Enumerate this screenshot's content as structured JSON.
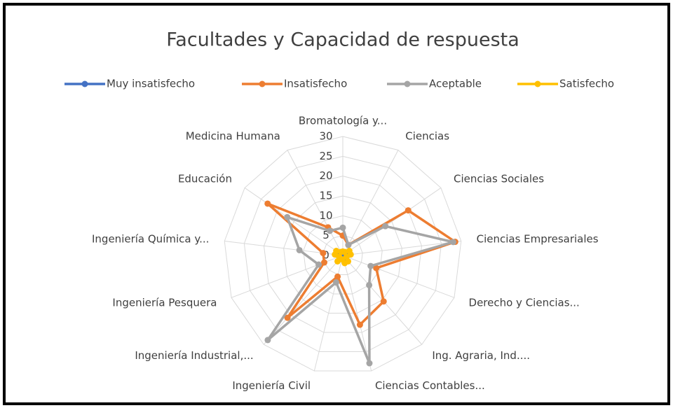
{
  "chart_data": {
    "type": "radar",
    "title": "Facultades y Capacidad de respuesta",
    "categories": [
      "Bromatología y...",
      "Ciencias",
      "Ciencias Sociales",
      "Ciencias Empresariales",
      "Derecho y Ciencias...",
      "Ing. Agraria, Ind....",
      "Ciencias Contables...",
      "Ingeniería Civil",
      "Ingeniería Industrial,...",
      "Ingeniería Pesquera",
      "Ingeniería Química y...",
      "Educación",
      "Medicina Humana"
    ],
    "series": [
      {
        "name": "Muy insatisfecho",
        "color": "#4472c4",
        "values": [
          0,
          0,
          1,
          1,
          0,
          1,
          1,
          0,
          1,
          0,
          0,
          1,
          0
        ]
      },
      {
        "name": "Insatisfecho",
        "color": "#ed7d31",
        "values": [
          5,
          3,
          20,
          28.5,
          9,
          15.5,
          18,
          5.5,
          21,
          5,
          5,
          23,
          8
        ]
      },
      {
        "name": "Aceptable",
        "color": "#a5a5a5",
        "values": [
          7,
          3,
          13,
          28,
          7.5,
          10,
          28,
          7,
          28.5,
          6.5,
          11,
          17,
          7
        ]
      },
      {
        "name": "Satisfecho",
        "color": "#ffc000",
        "values": [
          1,
          1,
          2,
          2,
          1,
          2,
          2,
          1,
          2,
          1,
          2,
          2,
          1
        ]
      }
    ],
    "ylim": [
      0,
      30
    ],
    "yticks": [
      0,
      5,
      10,
      15,
      20,
      25,
      30
    ],
    "grid": true,
    "legend": "top"
  }
}
